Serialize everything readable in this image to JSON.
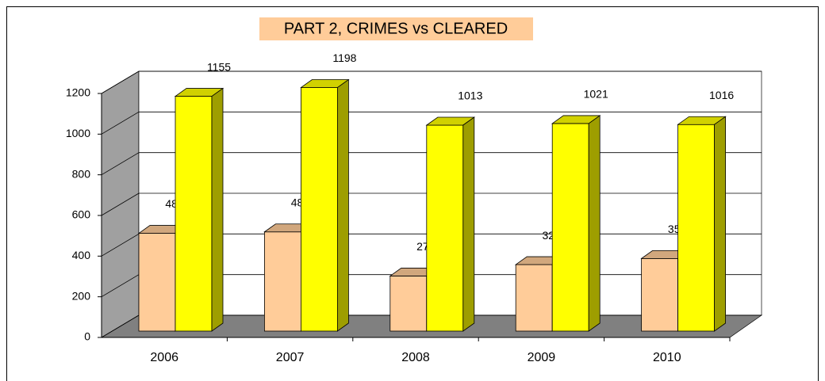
{
  "chart_data": {
    "type": "bar3d",
    "title": "PART 2, CRIMES vs CLEARED",
    "categories": [
      "2006",
      "2007",
      "2008",
      "2009",
      "2010"
    ],
    "series": [
      {
        "color": "#FFCC99",
        "values": [
          481,
          488,
          271,
          327,
          357
        ]
      },
      {
        "color": "#FFFF00",
        "values": [
          1155,
          1198,
          1013,
          1021,
          1016
        ]
      }
    ],
    "ylim": [
      0,
      1200
    ],
    "yticks": [
      0,
      200,
      400,
      600,
      800,
      1000,
      1200
    ],
    "grid": true
  }
}
